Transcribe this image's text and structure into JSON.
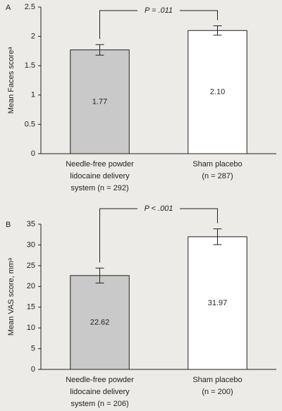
{
  "chart_data": [
    {
      "type": "bar",
      "panel_label": "A",
      "ylabel": "Mean Faces scoreᵃ",
      "categories": [
        [
          "Needle-free powder",
          "lidocaine delivery",
          "system (n = 292)"
        ],
        [
          "Sham placebo",
          "(n = 287)"
        ]
      ],
      "values": [
        1.77,
        2.1
      ],
      "value_labels": [
        "1.77",
        "2.10"
      ],
      "errors": [
        0.09,
        0.08
      ],
      "colors": [
        "#c9c9c9",
        "#ffffff"
      ],
      "ylim": [
        0,
        2.5
      ],
      "yticks": [
        0,
        0.5,
        1,
        1.5,
        2,
        2.5
      ],
      "annotation": "P = .011"
    },
    {
      "type": "bar",
      "panel_label": "B",
      "ylabel": "Mean VAS score, mmᵃ",
      "categories": [
        [
          "Needle-free powder",
          "lidocaine delivery",
          "system (n = 206)"
        ],
        [
          "Sham placebo",
          "(n = 200)"
        ]
      ],
      "values": [
        22.62,
        31.97
      ],
      "value_labels": [
        "22.62",
        "31.97"
      ],
      "errors": [
        1.8,
        1.9
      ],
      "colors": [
        "#c9c9c9",
        "#ffffff"
      ],
      "ylim": [
        0,
        35
      ],
      "yticks": [
        0,
        5,
        10,
        15,
        20,
        25,
        30,
        35
      ],
      "annotation": "P < .001"
    }
  ]
}
